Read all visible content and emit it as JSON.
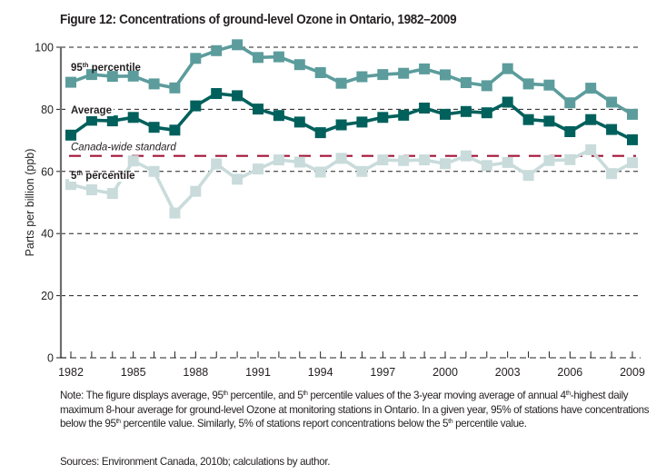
{
  "figure": {
    "title": "Figure 12: Concentrations of ground-level Ozone in Ontario, 1982–2009",
    "note": {
      "segments": [
        {
          "text": "Note: The figure displays average, 95"
        },
        {
          "sup": "th"
        },
        {
          "text": " percentile, and 5"
        },
        {
          "sup": "th"
        },
        {
          "text": " percentile values of the 3-year moving average of annual 4"
        },
        {
          "sup": "th"
        },
        {
          "text": "-highest daily maximum 8-hour average for ground-level Ozone at monitoring stations in Ontario. In a given year, 95% of stations have concentrations below the 95"
        },
        {
          "sup": "th"
        },
        {
          "text": " percentile value. Similarly, 5% of stations report concentrations below the 5"
        },
        {
          "sup": "th"
        },
        {
          "text": " percentile value."
        }
      ]
    },
    "sources": "Sources: Environment Canada, 2010b; calculations by author."
  },
  "chart_data": {
    "type": "line",
    "title": "Figure 12: Concentrations of ground-level Ozone in Ontario, 1982–2009",
    "xlabel": "",
    "ylabel": "Parts per billion (ppb)",
    "ylim": [
      0,
      100
    ],
    "xlim": [
      1982,
      2009
    ],
    "grid": "horizontal dashed",
    "yticks": [
      0,
      20,
      40,
      60,
      80,
      100
    ],
    "xtick_labels": [
      "1982",
      "1985",
      "1988",
      "1991",
      "1994",
      "1997",
      "2000",
      "2003",
      "2006",
      "2009"
    ],
    "x": [
      1982,
      1983,
      1984,
      1985,
      1986,
      1987,
      1988,
      1989,
      1990,
      1991,
      1992,
      1993,
      1994,
      1995,
      1996,
      1997,
      1998,
      1999,
      2000,
      2001,
      2002,
      2003,
      2004,
      2005,
      2006,
      2007,
      2008,
      2009
    ],
    "series": [
      {
        "name": "95th percentile",
        "label_main": "95",
        "label_sup": "th",
        "label_rest": " percentile",
        "color": "#5c9c9c",
        "values": [
          88.7,
          91.2,
          90.6,
          90.7,
          88.2,
          86.9,
          96.4,
          98.9,
          100.8,
          96.7,
          96.9,
          94.4,
          91.8,
          88.4,
          90.5,
          91.2,
          91.6,
          93.0,
          91.1,
          88.6,
          87.6,
          93.1,
          88.2,
          87.8,
          82.1,
          86.8,
          82.3,
          78.4
        ]
      },
      {
        "name": "Average",
        "label_main": "Average",
        "label_sup": "",
        "label_rest": "",
        "color": "#00605c",
        "values": [
          71.7,
          76.5,
          76.3,
          77.4,
          74.2,
          73.3,
          81.1,
          85.1,
          84.4,
          80.1,
          78.0,
          75.9,
          72.5,
          75.0,
          75.9,
          77.4,
          78.1,
          80.4,
          78.4,
          79.3,
          78.9,
          82.3,
          76.7,
          76.2,
          72.8,
          76.7,
          73.5,
          70.2
        ]
      },
      {
        "name": "5th percentile",
        "label_main": "5",
        "label_sup": "th",
        "label_rest": " percentile",
        "color": "#c9dbdb",
        "values": [
          55.8,
          54.1,
          52.9,
          63.4,
          60.0,
          46.6,
          53.6,
          62.4,
          57.5,
          60.8,
          63.7,
          63.0,
          59.8,
          64.2,
          60.0,
          63.7,
          63.5,
          63.7,
          62.5,
          65.0,
          61.9,
          62.9,
          58.7,
          63.5,
          63.8,
          67.0,
          59.3,
          62.8
        ]
      }
    ],
    "reference_lines": [
      {
        "name": "Canada-wide standard",
        "value": 65,
        "color": "#a3153a",
        "style": "dashed"
      }
    ]
  }
}
